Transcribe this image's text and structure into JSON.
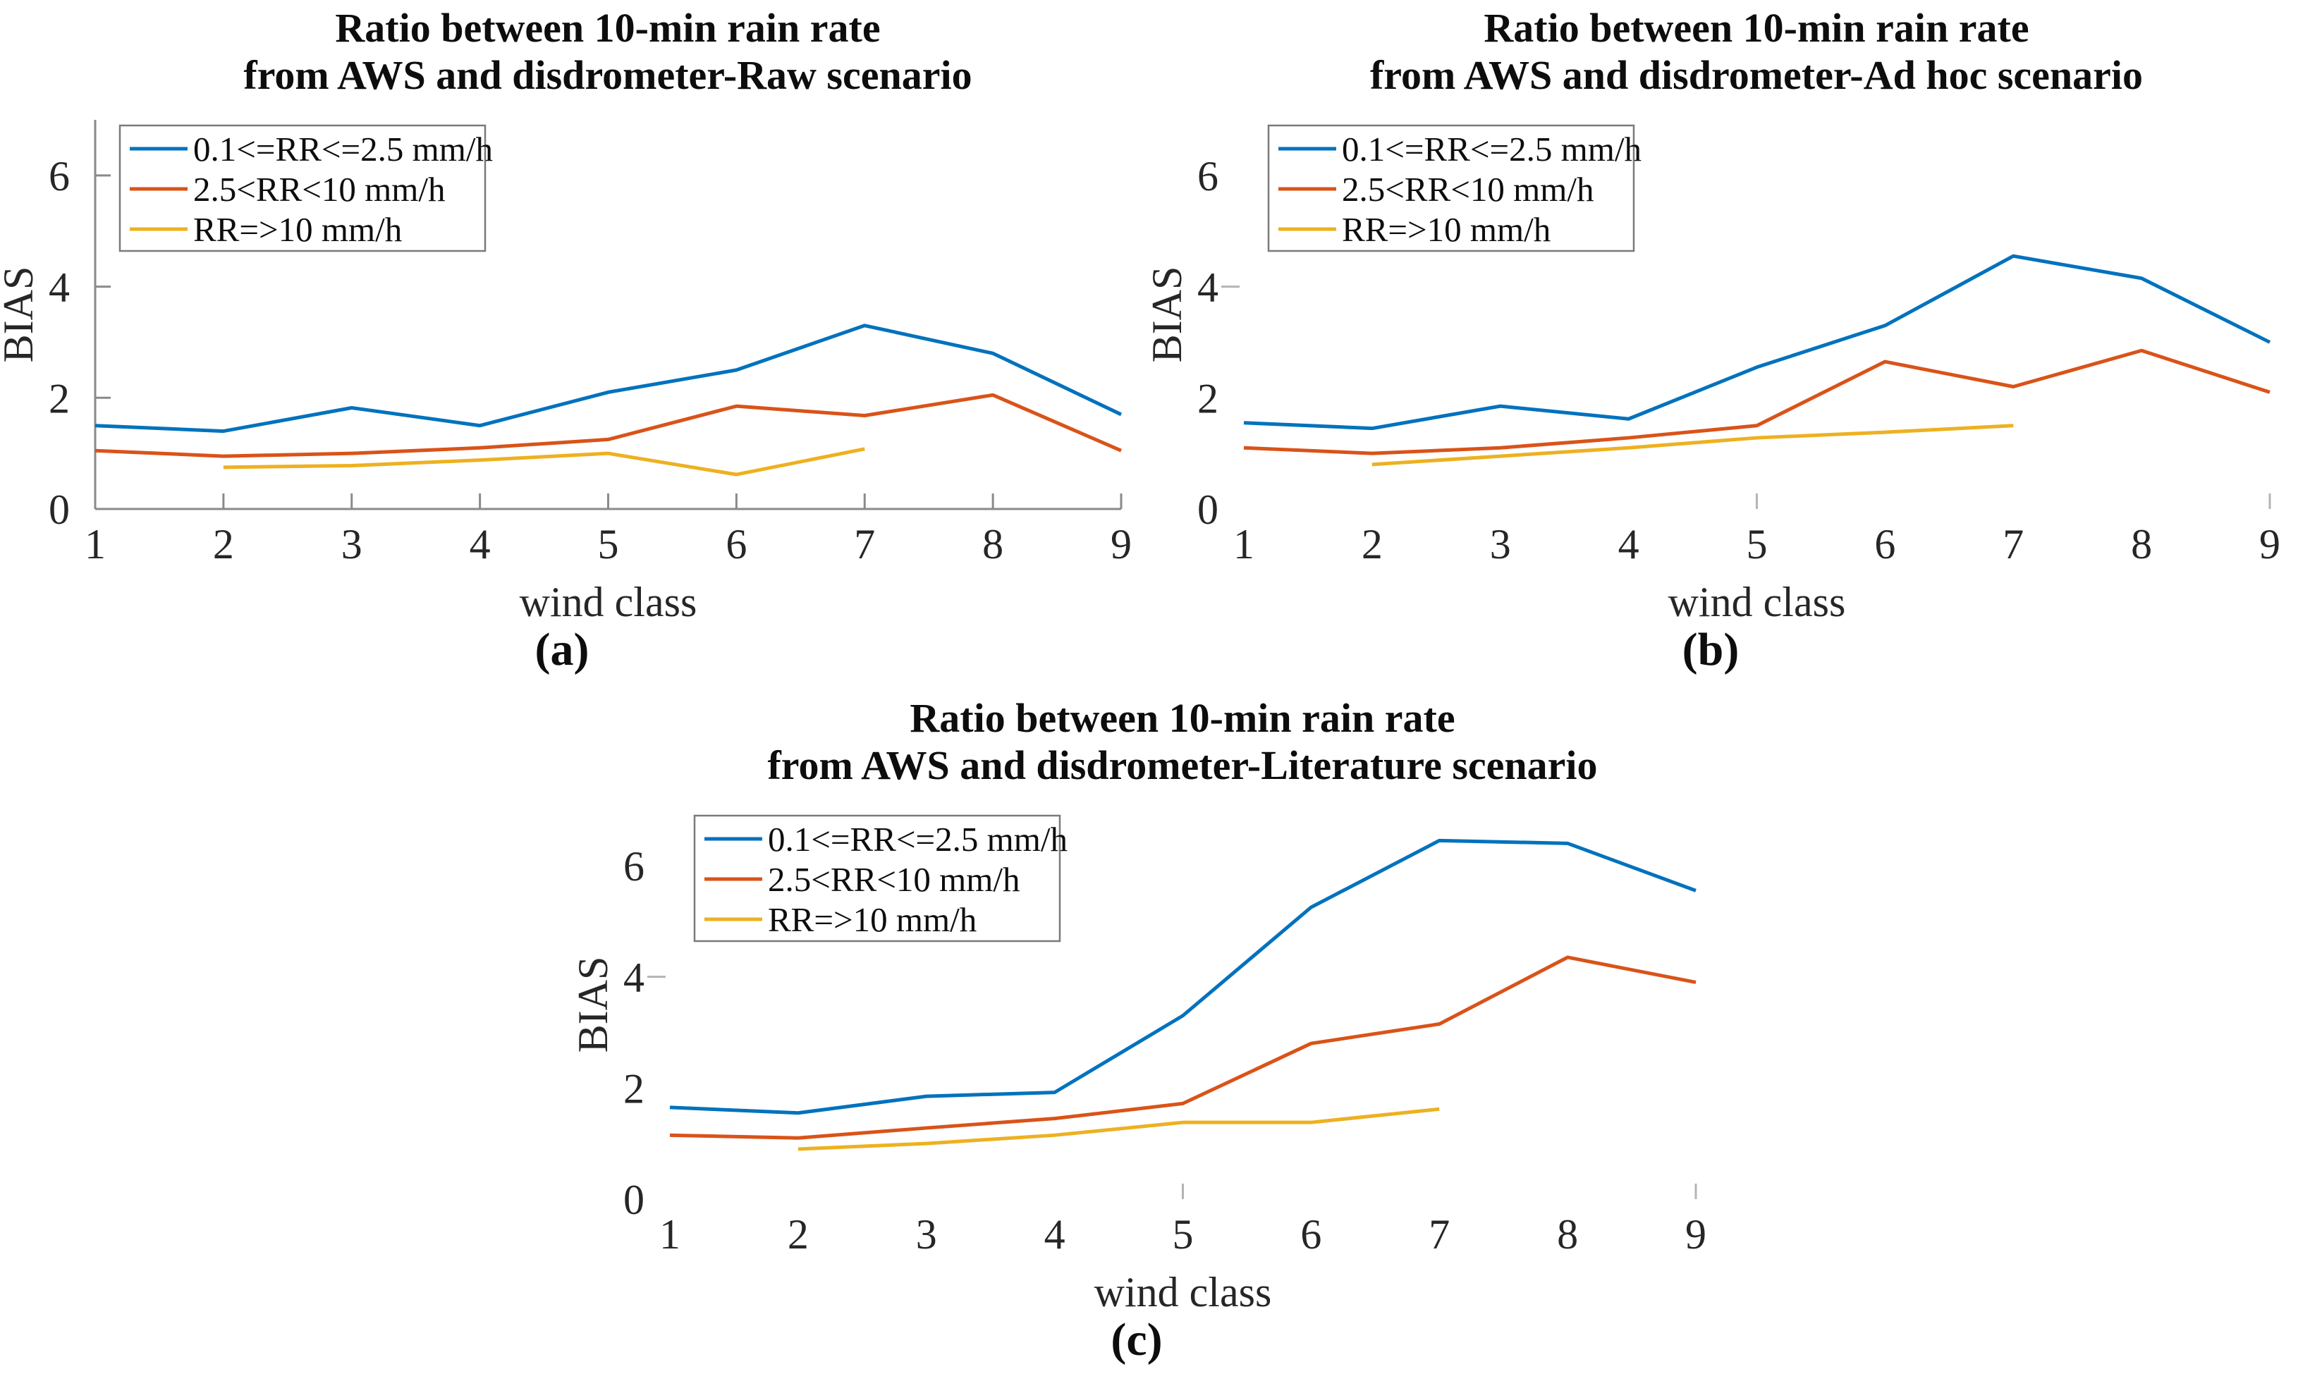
{
  "figure": {
    "background": "#ffffff",
    "text_color": "#262626",
    "axis_color": "#8a8a8a"
  },
  "chart_data": [
    {
      "type": "line",
      "id": "a",
      "caption": "(a)",
      "title_line1": "Ratio between 10-min rain rate",
      "title_line2": "from AWS and disdrometer-Raw scenario",
      "xlabel": "wind class",
      "ylabel": "BIAS",
      "x": [
        1,
        2,
        3,
        4,
        5,
        6,
        7,
        8,
        9
      ],
      "xlim": [
        1,
        9
      ],
      "ylim": [
        0,
        7
      ],
      "yticks": [
        0,
        2,
        4,
        6
      ],
      "grid": false,
      "axis_style": "full",
      "legend_position": "top-left",
      "series": [
        {
          "name": "0.1<=RR<=2.5 mm/h",
          "color": "#0072BD",
          "values": [
            1.5,
            1.4,
            1.82,
            1.5,
            2.1,
            2.5,
            3.3,
            2.8,
            1.7
          ]
        },
        {
          "name": "2.5<RR<10 mm/h",
          "color": "#D95319",
          "values": [
            1.05,
            0.95,
            1.0,
            1.1,
            1.25,
            1.85,
            1.68,
            2.05,
            1.05
          ]
        },
        {
          "name": "RR=>10 mm/h",
          "color": "#EDB120",
          "values": [
            null,
            0.75,
            0.78,
            0.88,
            1.0,
            0.62,
            1.08,
            null,
            null
          ]
        }
      ]
    },
    {
      "type": "line",
      "id": "b",
      "caption": "(b)",
      "title_line1": "Ratio between 10-min rain rate",
      "title_line2": "from AWS and disdrometer-Ad hoc scenario",
      "xlabel": "wind class",
      "ylabel": "BIAS",
      "x": [
        1,
        2,
        3,
        4,
        5,
        6,
        7,
        8,
        9
      ],
      "xlim": [
        1,
        9
      ],
      "ylim": [
        0,
        7
      ],
      "yticks": [
        0,
        2,
        4,
        6
      ],
      "grid": false,
      "axis_style": "minimal",
      "legend_position": "top-left",
      "series": [
        {
          "name": "0.1<=RR<=2.5 mm/h",
          "color": "#0072BD",
          "values": [
            1.55,
            1.45,
            1.85,
            1.62,
            2.55,
            3.3,
            4.55,
            4.15,
            3.0
          ]
        },
        {
          "name": "2.5<RR<10 mm/h",
          "color": "#D95319",
          "values": [
            1.1,
            1.0,
            1.1,
            1.28,
            1.5,
            2.65,
            2.2,
            2.85,
            2.1
          ]
        },
        {
          "name": "RR=>10 mm/h",
          "color": "#EDB120",
          "values": [
            null,
            0.8,
            0.95,
            1.1,
            1.28,
            1.38,
            1.5,
            null,
            null
          ]
        }
      ]
    },
    {
      "type": "line",
      "id": "c",
      "caption": "(c)",
      "title_line1": "Ratio between 10-min rain rate",
      "title_line2": "from AWS and disdrometer-Literature scenario",
      "xlabel": "wind class",
      "ylabel": "BIAS",
      "x": [
        1,
        2,
        3,
        4,
        5,
        6,
        7,
        8,
        9
      ],
      "xlim": [
        1,
        9
      ],
      "ylim": [
        0,
        7
      ],
      "yticks": [
        0,
        2,
        4,
        6
      ],
      "grid": false,
      "axis_style": "minimal",
      "legend_position": "top-left",
      "series": [
        {
          "name": "0.1<=RR<=2.5 mm/h",
          "color": "#0072BD",
          "values": [
            1.65,
            1.55,
            1.85,
            1.92,
            3.3,
            5.25,
            6.45,
            6.4,
            5.55
          ]
        },
        {
          "name": "2.5<RR<10 mm/h",
          "color": "#D95319",
          "values": [
            1.15,
            1.1,
            1.28,
            1.45,
            1.72,
            2.8,
            3.15,
            4.35,
            3.9
          ]
        },
        {
          "name": "RR=>10 mm/h",
          "color": "#EDB120",
          "values": [
            null,
            0.9,
            1.0,
            1.15,
            1.38,
            1.38,
            1.62,
            null,
            null
          ]
        }
      ]
    }
  ]
}
